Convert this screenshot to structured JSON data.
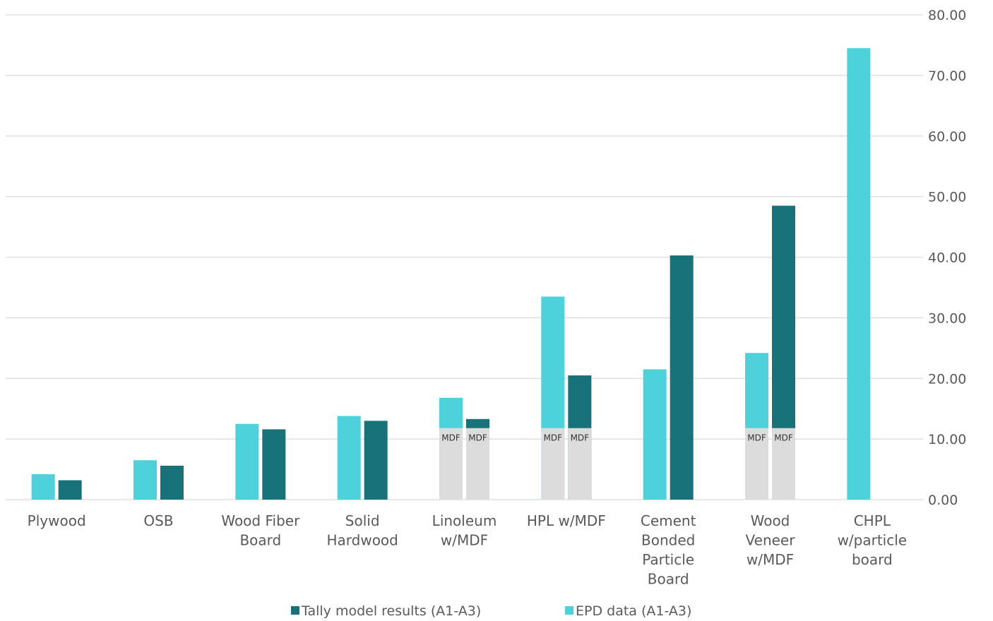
{
  "chart_data": {
    "type": "bar",
    "categories": [
      [
        "Plywood"
      ],
      [
        "OSB"
      ],
      [
        "Wood Fiber",
        "Board"
      ],
      [
        "Solid",
        "Hardwood"
      ],
      [
        "Linoleum",
        "w/MDF"
      ],
      [
        "HPL w/MDF"
      ],
      [
        "Cement",
        "Bonded",
        "Particle",
        "Board"
      ],
      [
        "Wood",
        "Veneer",
        "w/MDF"
      ],
      [
        "CHPL",
        "w/particle",
        "board"
      ]
    ],
    "series": [
      {
        "name": "EPD data (A1-A3)",
        "color": "#4dd2dc",
        "values": [
          4.2,
          6.5,
          12.5,
          13.8,
          16.8,
          33.5,
          21.5,
          24.2,
          74.5
        ]
      },
      {
        "name": "Tally model results (A1-A3)",
        "color": "#177279",
        "values": [
          3.2,
          5.6,
          11.6,
          13.0,
          13.3,
          20.5,
          40.3,
          48.5,
          null
        ]
      }
    ],
    "mdf_component": {
      "label": "MDF",
      "value": 11.8,
      "color": "#dcdcdc",
      "categories_with_mdf": [
        4,
        5,
        7
      ]
    },
    "y_ticks": [
      "0.00",
      "10.00",
      "20.00",
      "30.00",
      "40.00",
      "50.00",
      "60.00",
      "70.00",
      "80.00"
    ],
    "ylim": [
      0,
      80
    ],
    "y_axis_side": "right",
    "grid": true,
    "legend": {
      "position": "bottom",
      "order": [
        "Tally model results (A1-A3)",
        "EPD data (A1-A3)"
      ]
    },
    "title": "",
    "xlabel": "",
    "ylabel": ""
  }
}
